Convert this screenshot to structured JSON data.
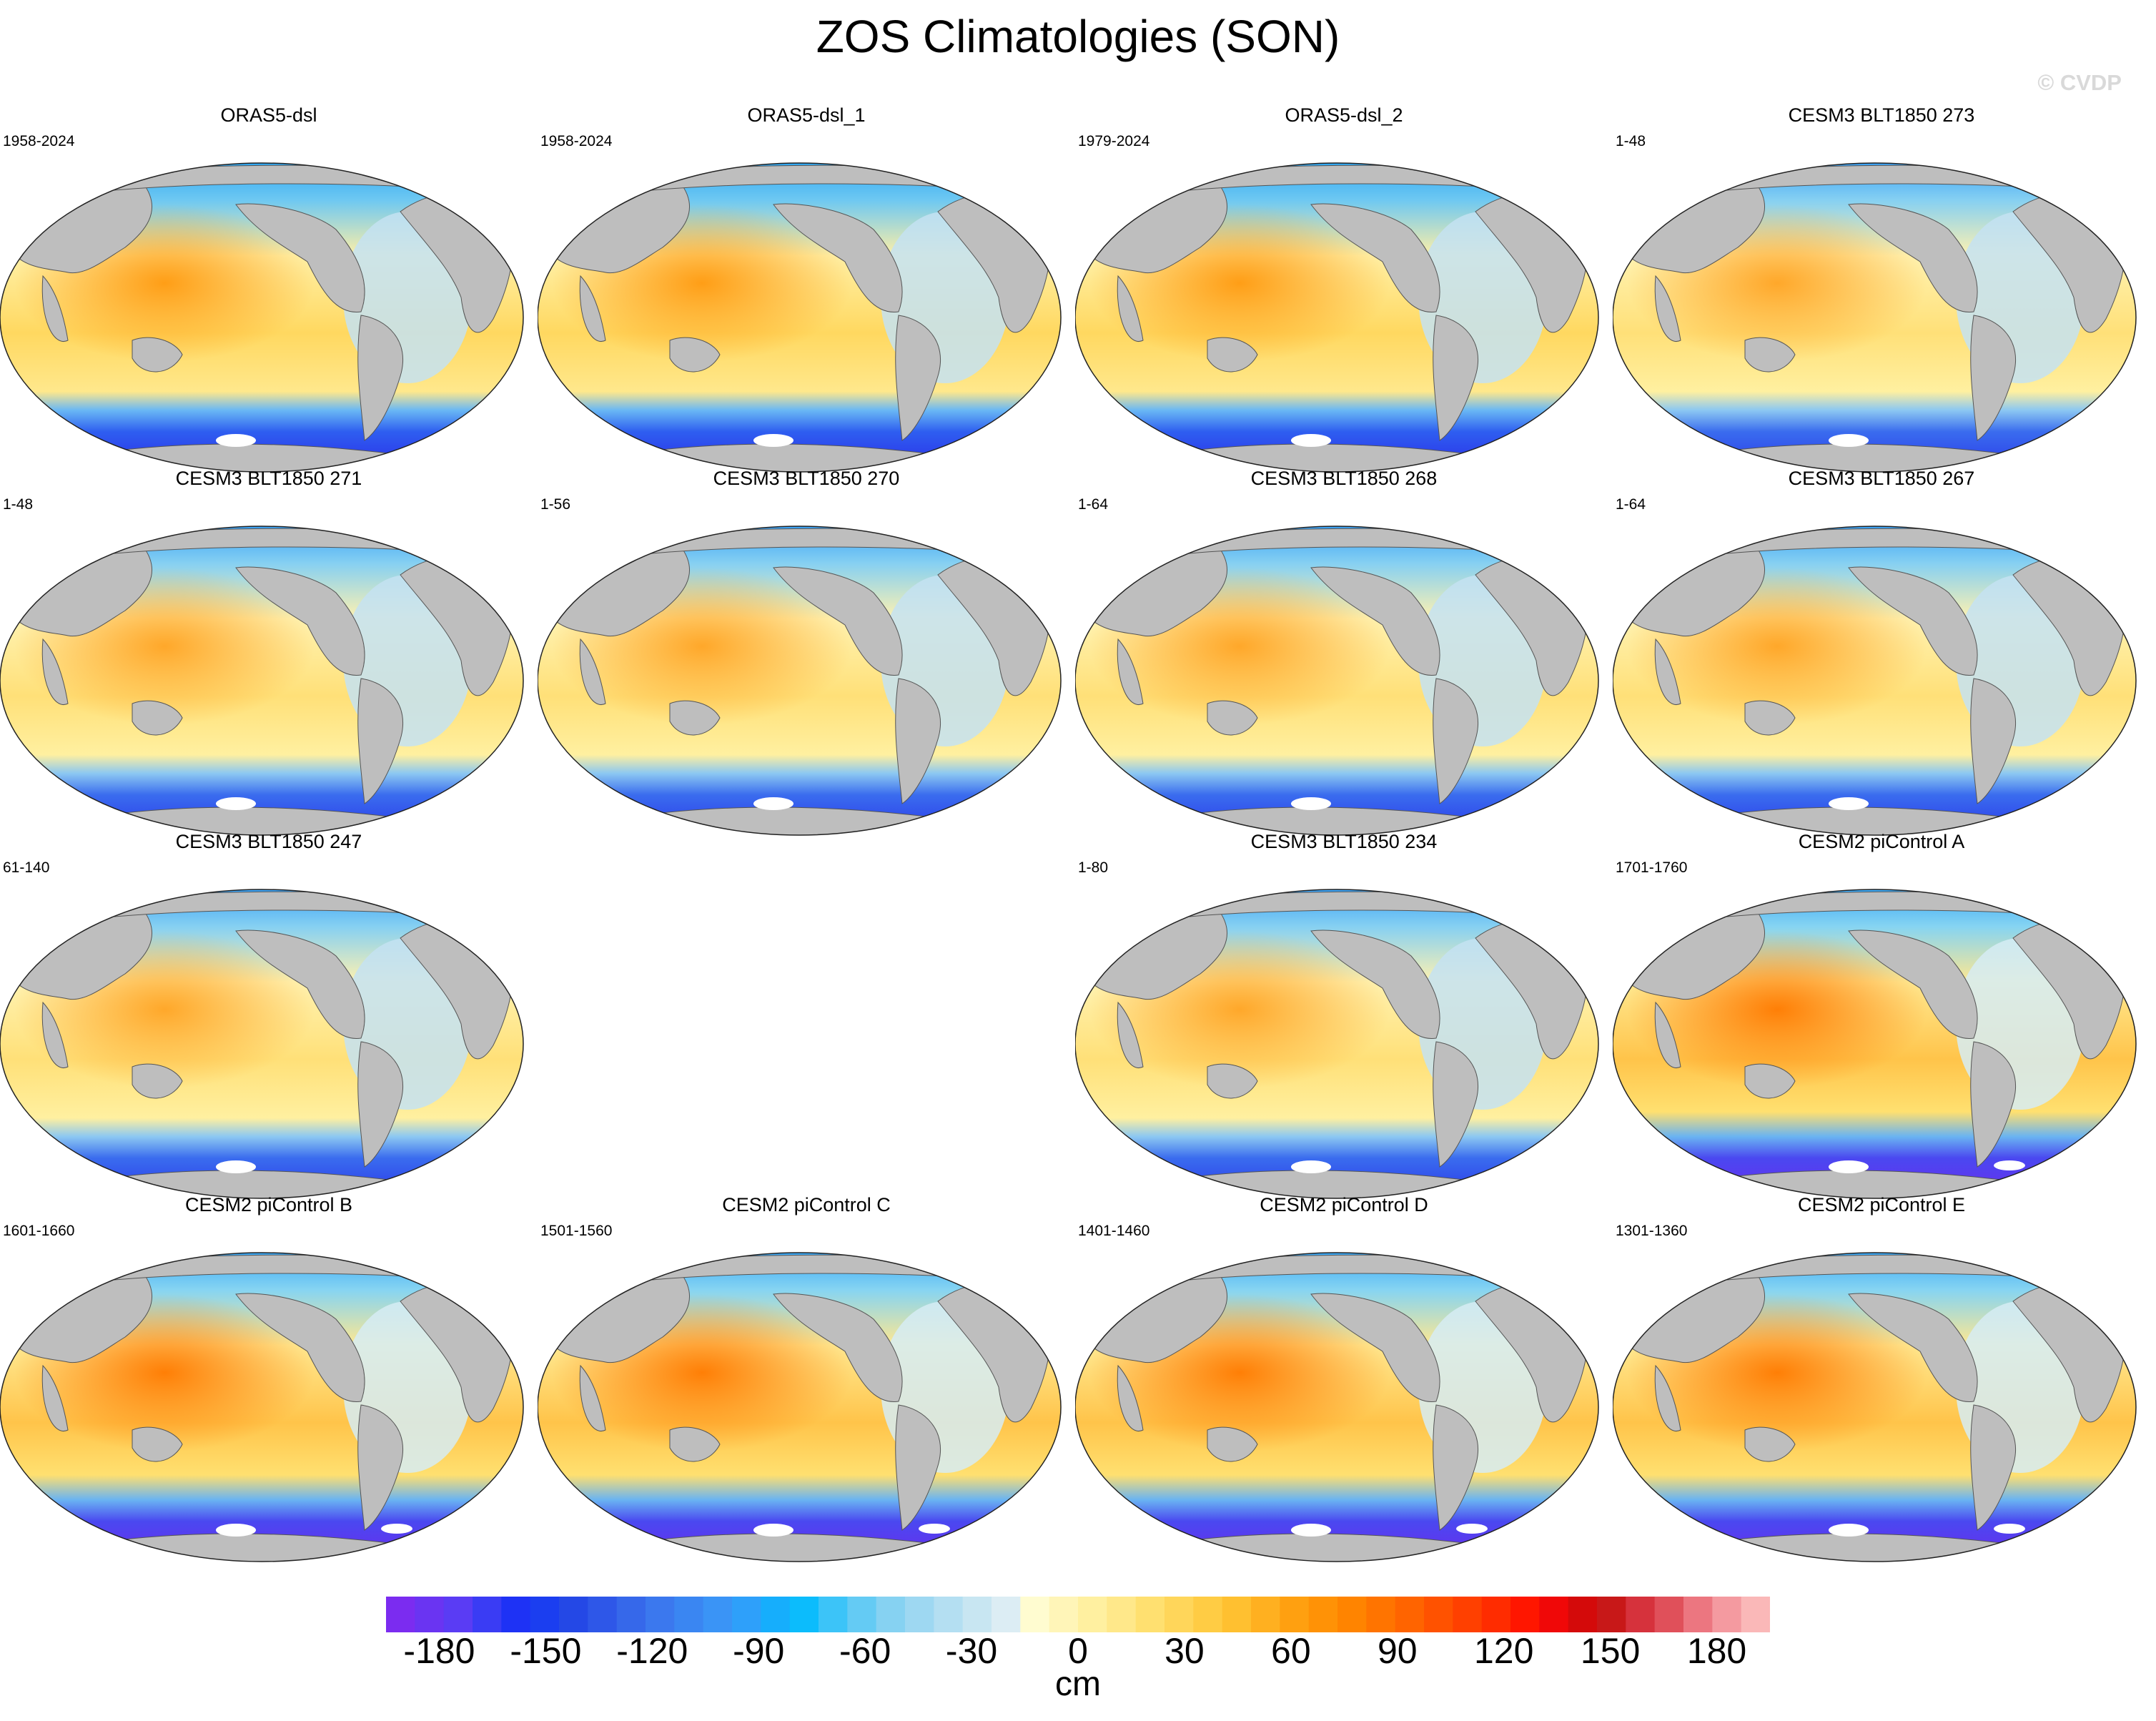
{
  "title": "ZOS Climatologies (SON)",
  "watermark": "© CVDP",
  "colors": {
    "land": "#bebebe",
    "background": "#ffffff",
    "scale": [
      "#7b2cf0",
      "#6a34f2",
      "#5a3cf4",
      "#3a3cf4",
      "#1e32f5",
      "#1b3ef0",
      "#2448e6",
      "#2e57e8",
      "#3668ea",
      "#3b78ee",
      "#3a86f2",
      "#3a94f6",
      "#2ea0fa",
      "#16aefc",
      "#0cbcfc",
      "#3cc4f8",
      "#64cbf4",
      "#86d2f2",
      "#9ed8f2",
      "#b4dff2",
      "#c8e6f2",
      "#dcedf4",
      "#fffcd0",
      "#fff5b8",
      "#fff0a0",
      "#ffe88a",
      "#ffe070",
      "#ffd65a",
      "#ffcc44",
      "#ffc030",
      "#ffb020",
      "#ffa010",
      "#ff9206",
      "#ff8400",
      "#ff7400",
      "#ff6400",
      "#ff5200",
      "#ff4000",
      "#ff2c00",
      "#ff1600",
      "#f00808",
      "#d40a0a",
      "#c81818",
      "#d6323c",
      "#e0505a",
      "#ec7680",
      "#f49aa0",
      "#fab8b8"
    ]
  },
  "panels": [
    {
      "title": "ORAS5-dsl",
      "years": "1958-2024",
      "style": "obs"
    },
    {
      "title": "ORAS5-dsl_1",
      "years": "1958-2024",
      "style": "obs"
    },
    {
      "title": "ORAS5-dsl_2",
      "years": "1979-2024",
      "style": "obs"
    },
    {
      "title": "CESM3 BLT1850 273",
      "years": "1-48",
      "style": "cesm3"
    },
    {
      "title": "CESM3 BLT1850 271",
      "years": "1-48",
      "style": "cesm3"
    },
    {
      "title": "CESM3 BLT1850 270",
      "years": "1-56",
      "style": "cesm3"
    },
    {
      "title": "CESM3 BLT1850 268",
      "years": "1-64",
      "style": "cesm3"
    },
    {
      "title": "CESM3 BLT1850 267",
      "years": "1-64",
      "style": "cesm3"
    },
    {
      "title": "CESM3 BLT1850 247",
      "years": "61-140",
      "style": "cesm3"
    },
    null,
    {
      "title": "CESM3 BLT1850 234",
      "years": "1-80",
      "style": "cesm3"
    },
    {
      "title": "CESM2 piControl A",
      "years": "1701-1760",
      "style": "cesm2"
    },
    {
      "title": "CESM2 piControl B",
      "years": "1601-1660",
      "style": "cesm2"
    },
    {
      "title": "CESM2 piControl C",
      "years": "1501-1560",
      "style": "cesm2"
    },
    {
      "title": "CESM2 piControl D",
      "years": "1401-1460",
      "style": "cesm2"
    },
    {
      "title": "CESM2 piControl E",
      "years": "1301-1360",
      "style": "cesm2"
    }
  ],
  "colorbar": {
    "ticks": [
      "-180",
      "-150",
      "-120",
      "-90",
      "-60",
      "-30",
      "0",
      "30",
      "60",
      "90",
      "120",
      "150",
      "180"
    ],
    "unit": "cm",
    "min": -195,
    "max": 195
  }
}
